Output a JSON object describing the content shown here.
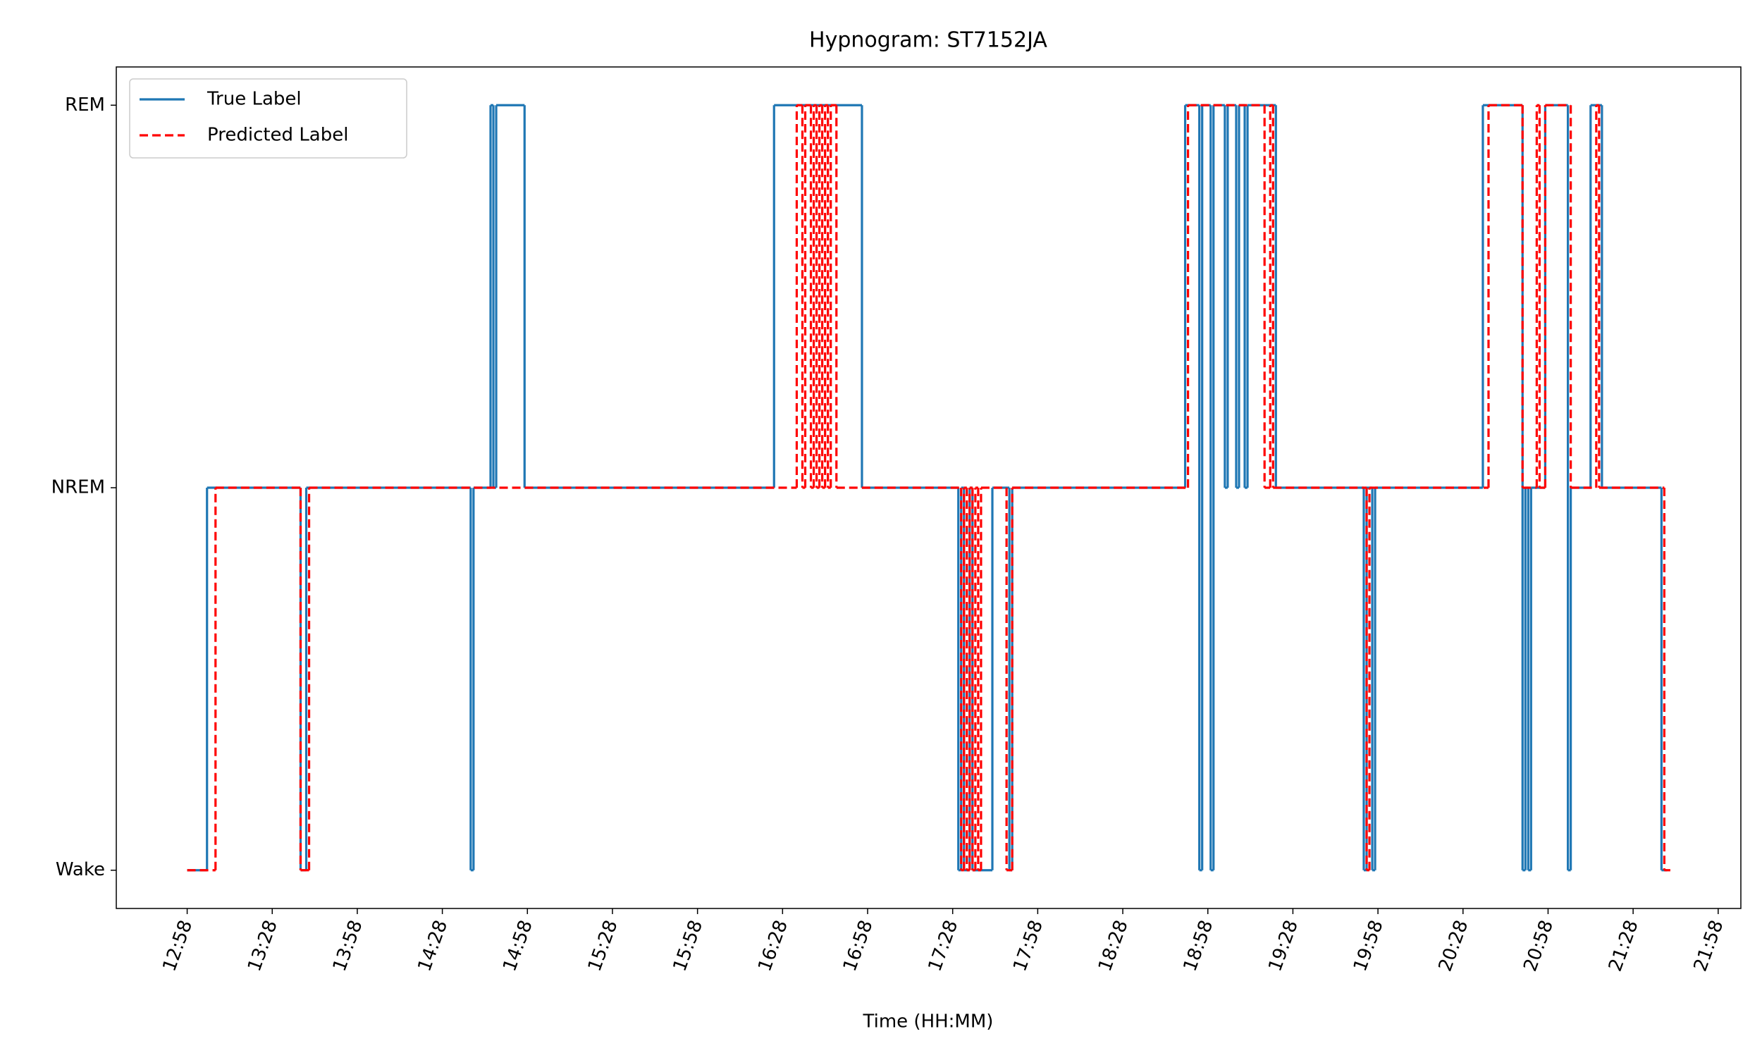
{
  "chart_data": {
    "type": "step",
    "title": "Hypnogram: ST7152JA",
    "x_label": "Time (HH:MM)",
    "xlim": [
      "12:33",
      "22:06"
    ],
    "xticks": [
      "12:58",
      "13:28",
      "13:58",
      "14:28",
      "14:58",
      "15:28",
      "15:58",
      "16:28",
      "16:58",
      "17:28",
      "17:58",
      "18:28",
      "18:58",
      "19:28",
      "19:58",
      "20:28",
      "20:58",
      "21:28",
      "21:58"
    ],
    "ylim": [
      -0.1,
      2.1
    ],
    "yticks": [
      {
        "value": 0,
        "label": "Wake"
      },
      {
        "value": 1,
        "label": "NREM"
      },
      {
        "value": 2,
        "label": "REM"
      }
    ],
    "grid": false,
    "legend": "upper left",
    "series": [
      {
        "name": "True Label",
        "color": "#1f77b4",
        "style": "solid",
        "x": [
          "12:58",
          "13:05",
          "13:38",
          "13:40",
          "14:38",
          "14:39",
          "14:45",
          "14:46",
          "14:47",
          "14:57",
          "16:25",
          "16:56",
          "17:30",
          "17:31",
          "17:32",
          "17:34",
          "17:35",
          "17:42",
          "17:48",
          "17:49",
          "18:50",
          "18:55",
          "18:56",
          "18:59",
          "19:00",
          "19:04",
          "19:05",
          "19:08",
          "19:09",
          "19:11",
          "19:12",
          "19:22",
          "19:53",
          "19:54",
          "19:56",
          "19:57",
          "20:35",
          "20:49",
          "20:50",
          "20:51",
          "20:52",
          "20:57",
          "21:05",
          "21:06",
          "21:13",
          "21:17",
          "21:38",
          "21:40"
        ],
        "values": [
          0,
          1,
          0,
          1,
          0,
          1,
          2,
          1,
          2,
          1,
          2,
          1,
          0,
          1,
          0,
          1,
          0,
          1,
          0,
          1,
          2,
          0,
          2,
          0,
          2,
          1,
          2,
          1,
          2,
          1,
          2,
          1,
          0,
          1,
          0,
          1,
          2,
          0,
          1,
          0,
          1,
          2,
          0,
          1,
          2,
          1,
          0,
          0
        ]
      },
      {
        "name": "Predicted Label",
        "color": "#ff0000",
        "style": "dashed",
        "x": [
          "12:58",
          "13:08",
          "13:38",
          "13:41",
          "16:33",
          "16:35",
          "16:36",
          "16:38",
          "16:39",
          "16:40",
          "16:41",
          "16:42",
          "16:43",
          "16:44",
          "16:45",
          "16:47",
          "17:31",
          "17:32",
          "17:33",
          "17:34",
          "17:35",
          "17:36",
          "17:37",
          "17:38",
          "17:47",
          "17:49",
          "18:51",
          "19:18",
          "19:20",
          "19:21",
          "19:54",
          "19:55",
          "20:37",
          "20:49",
          "20:54",
          "20:55",
          "20:57",
          "21:06",
          "21:15",
          "21:16",
          "21:39",
          "21:41"
        ],
        "values": [
          0,
          1,
          0,
          1,
          2,
          1,
          2,
          1,
          2,
          1,
          2,
          1,
          2,
          1,
          2,
          1,
          0,
          1,
          0,
          1,
          0,
          1,
          0,
          1,
          0,
          1,
          2,
          1,
          2,
          1,
          0,
          1,
          2,
          1,
          2,
          1,
          2,
          1,
          2,
          1,
          0,
          0
        ]
      }
    ]
  }
}
